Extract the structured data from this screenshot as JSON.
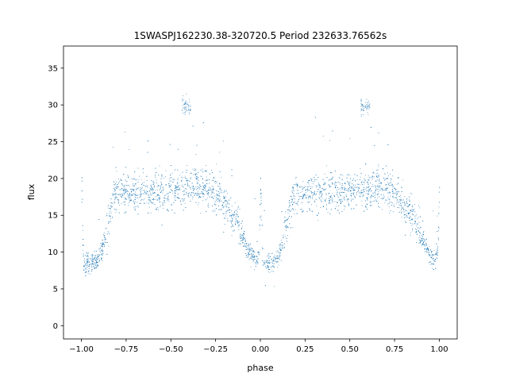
{
  "chart_data": {
    "type": "scatter",
    "title": "1SWASPJ162230.38-320720.5 Period 232633.76562s",
    "xlabel": "phase",
    "ylabel": "flux",
    "xlim": [
      -1.1,
      1.1
    ],
    "ylim": [
      -1.8,
      38.0
    ],
    "xticks": [
      -1.0,
      -0.75,
      -0.5,
      -0.25,
      0.0,
      0.25,
      0.5,
      0.75,
      1.0
    ],
    "xtick_labels": [
      "−1.00",
      "−0.75",
      "−0.50",
      "−0.25",
      "0.00",
      "0.25",
      "0.50",
      "0.75",
      "1.00"
    ],
    "yticks": [
      0,
      5,
      10,
      15,
      20,
      25,
      30,
      35
    ],
    "ytick_labels": [
      "0",
      "5",
      "10",
      "15",
      "20",
      "25",
      "30",
      "35"
    ],
    "grid": false,
    "point_color": "#1f77b4",
    "series": [
      {
        "profile_phase": [
          0.0,
          0.01,
          0.02,
          0.05,
          0.08,
          0.1,
          0.12,
          0.14,
          0.16,
          0.18,
          0.2,
          0.25,
          0.3,
          0.4,
          0.5,
          0.6,
          0.65,
          0.7,
          0.75,
          0.8,
          0.85,
          0.88,
          0.9,
          0.93,
          0.95,
          0.97,
          0.99,
          1.0
        ],
        "profile_flux": [
          19.0,
          9.0,
          8.5,
          8.5,
          8.8,
          9.5,
          11.0,
          13.0,
          15.5,
          17.5,
          18.0,
          18.2,
          18.0,
          18.3,
          18.5,
          18.7,
          19.0,
          18.5,
          18.0,
          16.5,
          15.0,
          13.5,
          12.0,
          10.5,
          9.5,
          9.0,
          10.0,
          19.0
        ],
        "scatter": 2.2,
        "spot": {
          "phase": 0.585,
          "flux": 29.8
        }
      }
    ]
  }
}
